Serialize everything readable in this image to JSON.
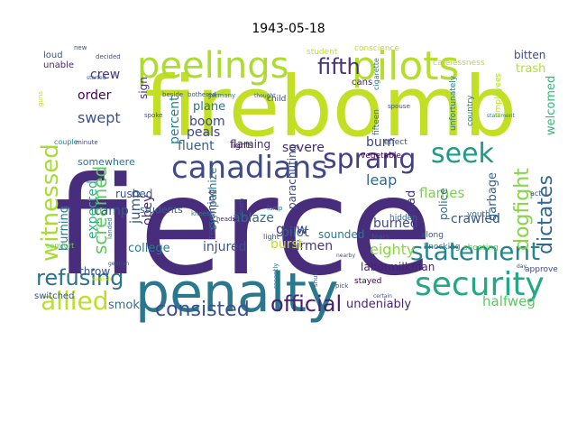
{
  "title": "1943-05-18",
  "words": [
    {
      "text": "fierce",
      "color": "#472d7b"
    },
    {
      "text": "firebomb",
      "color": "#c2df23"
    },
    {
      "text": "penalty",
      "color": "#2a788e"
    },
    {
      "text": "pilots",
      "color": "#b5de2b"
    },
    {
      "text": "peelings",
      "color": "#addc30"
    },
    {
      "text": "canadians",
      "color": "#3e4a89"
    },
    {
      "text": "security",
      "color": "#22a884"
    },
    {
      "text": "statement",
      "color": "#25858e"
    },
    {
      "text": "witnessed",
      "color": "#a8db34"
    },
    {
      "text": "refusing",
      "color": "#2c728e"
    },
    {
      "text": "allied",
      "color": "#bddf26"
    },
    {
      "text": "consisted",
      "color": "#3b518b"
    },
    {
      "text": "official",
      "color": "#482173"
    },
    {
      "text": "seek",
      "color": "#1e9b8a"
    },
    {
      "text": "sprang",
      "color": "#433e85"
    },
    {
      "text": "fifth",
      "color": "#46327e"
    },
    {
      "text": "screamed",
      "color": "#5ec962"
    },
    {
      "text": "dogfight",
      "color": "#86d549"
    },
    {
      "text": "dictates",
      "color": "#31688e"
    },
    {
      "text": "crew",
      "color": "#453781"
    },
    {
      "text": "order",
      "color": "#440154"
    },
    {
      "text": "swept",
      "color": "#3b528b"
    },
    {
      "text": "camp",
      "color": "#365c8d"
    },
    {
      "text": "boom",
      "color": "#3f4788"
    },
    {
      "text": "plane",
      "color": "#2d708e"
    },
    {
      "text": "peals",
      "color": "#404688"
    },
    {
      "text": "fluent",
      "color": "#355f8d"
    },
    {
      "text": "percent",
      "color": "#26818e"
    },
    {
      "text": "severe",
      "color": "#482878"
    },
    {
      "text": "burn",
      "color": "#414487"
    },
    {
      "text": "flames",
      "color": "#7ad151"
    },
    {
      "text": "leap",
      "color": "#31688e"
    },
    {
      "text": "glow",
      "color": "#46337f"
    },
    {
      "text": "airmen",
      "color": "#453882"
    },
    {
      "text": "pilot",
      "color": "#33638d"
    },
    {
      "text": "burned",
      "color": "#3e4989"
    },
    {
      "text": "crawled",
      "color": "#39568c"
    },
    {
      "text": "eighty",
      "color": "#8bd646"
    },
    {
      "text": "labormilkman",
      "color": "#481f70"
    },
    {
      "text": "undeniably",
      "color": "#482475"
    },
    {
      "text": "halfweg",
      "color": "#5ec962"
    },
    {
      "text": "burst",
      "color": "#c2df23"
    },
    {
      "text": "injured",
      "color": "#3b528b"
    },
    {
      "text": "college",
      "color": "#2a788e"
    },
    {
      "text": "smoke",
      "color": "#2c728e"
    },
    {
      "text": "ablaze",
      "color": "#2e6e8e"
    },
    {
      "text": "sympathize",
      "color": "#2a778e"
    },
    {
      "text": "obey",
      "color": "#482576"
    },
    {
      "text": "jump",
      "color": "#38598c"
    },
    {
      "text": "expected",
      "color": "#2db27d"
    },
    {
      "text": "burning",
      "color": "#297a8e"
    },
    {
      "text": "throw",
      "color": "#3a548c"
    },
    {
      "text": "somewhere",
      "color": "#2d708e"
    },
    {
      "text": "sign",
      "color": "#46307e"
    },
    {
      "text": "parachuting",
      "color": "#3f4889"
    },
    {
      "text": "flaming",
      "color": "#482979"
    },
    {
      "text": "rushed",
      "color": "#3b528b"
    },
    {
      "text": "students",
      "color": "#355e8d"
    },
    {
      "text": "trash",
      "color": "#b5de2b"
    },
    {
      "text": "bitten",
      "color": "#3e4a89"
    },
    {
      "text": "welcomed",
      "color": "#38b977"
    },
    {
      "text": "garbage",
      "color": "#33638d"
    },
    {
      "text": "police",
      "color": "#2f6c8e"
    },
    {
      "text": "road",
      "color": "#453781"
    },
    {
      "text": "sounded",
      "color": "#2a788e"
    },
    {
      "text": "lights",
      "color": "#471063"
    },
    {
      "text": "fifteen",
      "color": "#2a788e"
    },
    {
      "text": "cans",
      "color": "#481a6c"
    },
    {
      "text": "loud",
      "color": "#3b528b"
    },
    {
      "text": "conscience",
      "color": "#c8e020"
    },
    {
      "text": "carelessness",
      "color": "#bade28"
    },
    {
      "text": "youth",
      "color": "#2e6e8e"
    },
    {
      "text": "shooting",
      "color": "#5ec962"
    },
    {
      "text": "approve",
      "color": "#3e4a89"
    },
    {
      "text": "stayed",
      "color": "#440154"
    },
    {
      "text": "hidden",
      "color": "#31688e"
    },
    {
      "text": "effect",
      "color": "#3b528b"
    },
    {
      "text": "remaining",
      "color": "#3e4a89"
    },
    {
      "text": "switched",
      "color": "#3b528b"
    },
    {
      "text": "unable",
      "color": "#482878"
    },
    {
      "text": "comfort",
      "color": "#6ece58"
    },
    {
      "text": "along",
      "color": "#3b528b"
    },
    {
      "text": "knocking",
      "color": "#2c728e"
    },
    {
      "text": "vegetable",
      "color": "#440154"
    },
    {
      "text": "statement",
      "color": "#25858e"
    },
    {
      "text": "minute",
      "color": "#3e4a89"
    },
    {
      "text": "couple",
      "color": "#26828e"
    },
    {
      "text": "employees",
      "color": "#b5de2b"
    },
    {
      "text": "country",
      "color": "#2a788e"
    },
    {
      "text": "unfortunately",
      "color": "#2a788e"
    },
    {
      "text": "germany",
      "color": "#2a788e"
    },
    {
      "text": "beside",
      "color": "#3b528b"
    },
    {
      "text": "bothered",
      "color": "#3b528b"
    },
    {
      "text": "child",
      "color": "#3e4a89"
    },
    {
      "text": "student",
      "color": "#c8e020"
    },
    {
      "text": "spoke",
      "color": "#3b528b"
    },
    {
      "text": "heads",
      "color": "#482878"
    },
    {
      "text": "knees",
      "color": "#2a788e"
    },
    {
      "text": "death",
      "color": "#3b528b"
    },
    {
      "text": "lamp",
      "color": "#2a788e"
    },
    {
      "text": "light",
      "color": "#3b528b"
    },
    {
      "text": "fears",
      "color": "#3b528b"
    },
    {
      "text": "recently",
      "color": "#2a788e"
    },
    {
      "text": "pick",
      "color": "#3b528b"
    },
    {
      "text": "shut",
      "color": "#3b528b"
    },
    {
      "text": "english",
      "color": "#c2df23"
    },
    {
      "text": "landed",
      "color": "#2a788e"
    },
    {
      "text": "german",
      "color": "#3b528b"
    },
    {
      "text": "cigarette",
      "color": "#2a788e"
    },
    {
      "text": "spouse",
      "color": "#3b528b"
    },
    {
      "text": "thought",
      "color": "#3b528b"
    },
    {
      "text": "new",
      "color": "#3b528b"
    },
    {
      "text": "decided",
      "color": "#3b528b"
    },
    {
      "text": "started",
      "color": "#3b528b"
    },
    {
      "text": "guns",
      "color": "#c2df23"
    },
    {
      "text": "day",
      "color": "#3b528b"
    },
    {
      "text": "certain",
      "color": "#3b528b"
    },
    {
      "text": "nearby",
      "color": "#3b528b"
    },
    {
      "text": "act",
      "color": "#3b528b"
    }
  ]
}
